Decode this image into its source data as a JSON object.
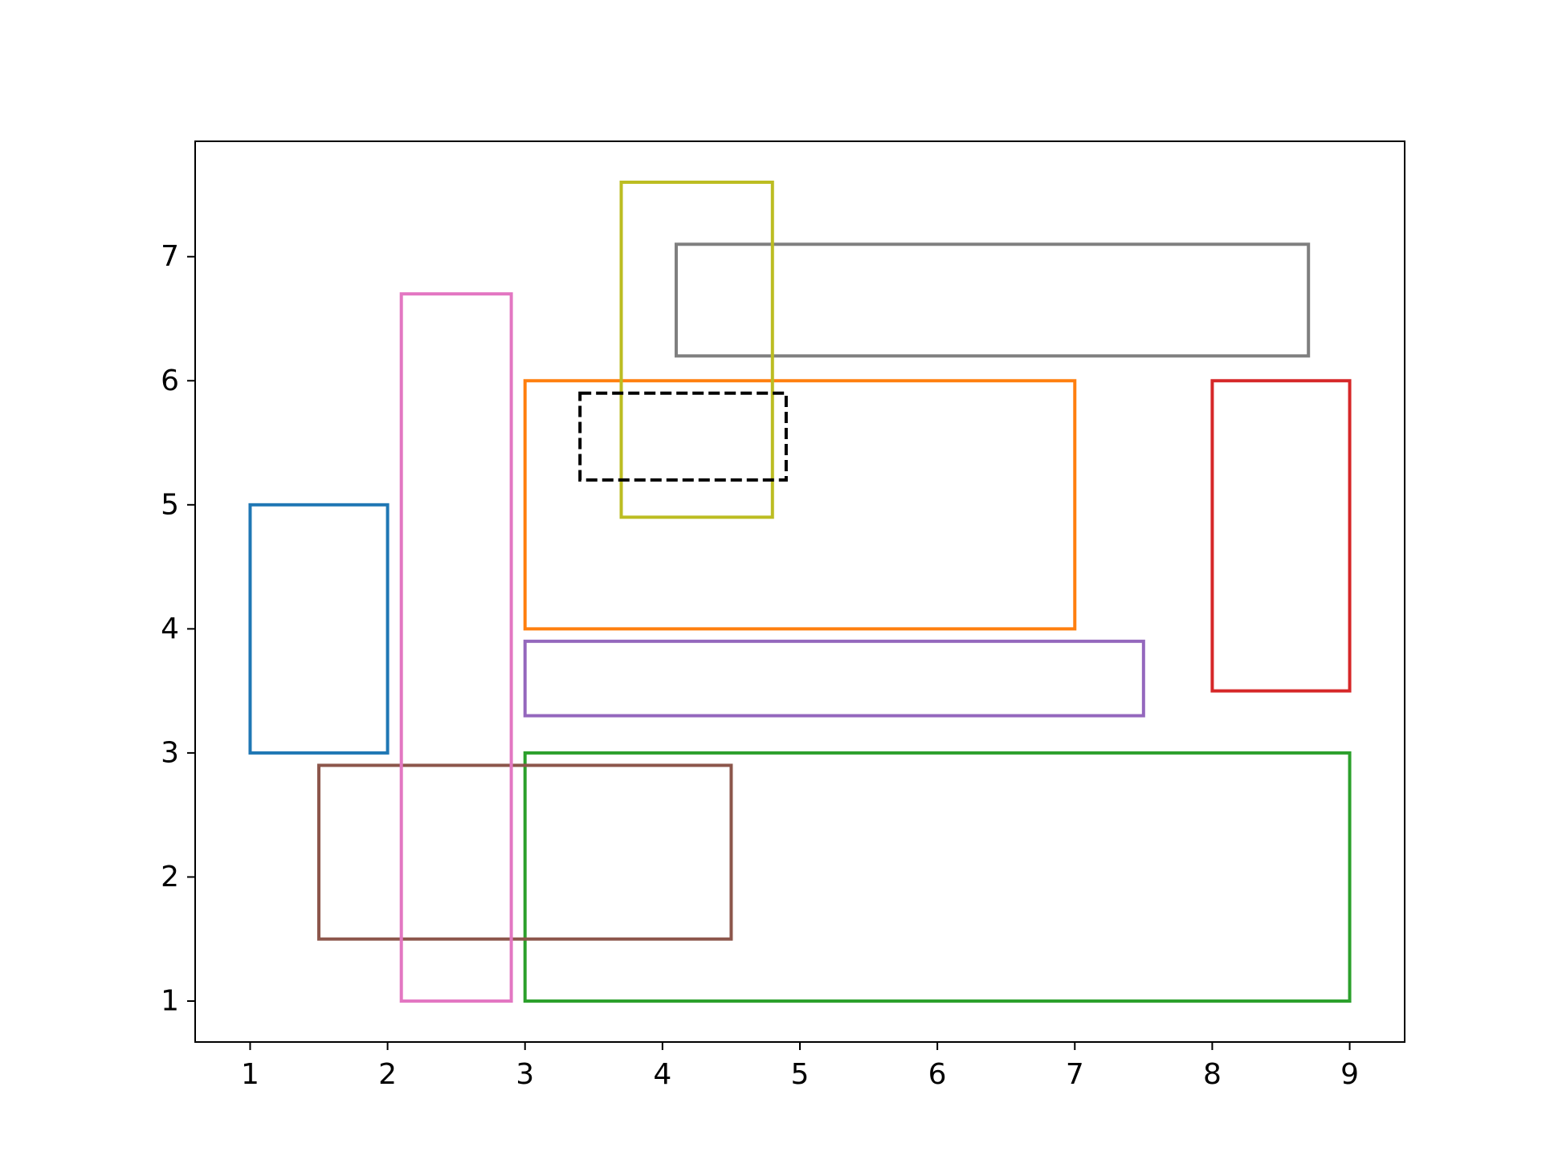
{
  "chart_data": {
    "type": "rectangles",
    "title": "",
    "xlabel": "",
    "ylabel": "",
    "xlim": [
      0.6,
      9.4
    ],
    "ylim": [
      0.67,
      7.93
    ],
    "x_ticks": [
      1,
      2,
      3,
      4,
      5,
      6,
      7,
      8,
      9
    ],
    "y_ticks": [
      1,
      2,
      3,
      4,
      5,
      6,
      7
    ],
    "grid": false,
    "legend": "none",
    "rectangles": [
      {
        "x": 1.0,
        "y": 3.0,
        "width": 1.0,
        "height": 2.0,
        "color": "#1f77b4",
        "style": "solid"
      },
      {
        "x": 3.0,
        "y": 4.0,
        "width": 4.0,
        "height": 2.0,
        "color": "#ff7f0e",
        "style": "solid"
      },
      {
        "x": 3.0,
        "y": 1.0,
        "width": 6.0,
        "height": 2.0,
        "color": "#2ca02c",
        "style": "solid"
      },
      {
        "x": 8.0,
        "y": 3.5,
        "width": 1.0,
        "height": 2.5,
        "color": "#d62728",
        "style": "solid"
      },
      {
        "x": 3.0,
        "y": 3.3,
        "width": 4.5,
        "height": 0.6,
        "color": "#9467bd",
        "style": "solid"
      },
      {
        "x": 1.5,
        "y": 1.5,
        "width": 3.0,
        "height": 1.4,
        "color": "#8c564b",
        "style": "solid"
      },
      {
        "x": 2.1,
        "y": 1.0,
        "width": 0.8,
        "height": 5.7,
        "color": "#e377c2",
        "style": "solid"
      },
      {
        "x": 4.1,
        "y": 6.2,
        "width": 4.6,
        "height": 0.9,
        "color": "#7f7f7f",
        "style": "solid"
      },
      {
        "x": 3.7,
        "y": 4.9,
        "width": 1.1,
        "height": 2.7,
        "color": "#bcbd22",
        "style": "solid"
      },
      {
        "x": 3.4,
        "y": 5.2,
        "width": 1.5,
        "height": 0.7,
        "color": "#000000",
        "style": "dashed"
      }
    ]
  }
}
